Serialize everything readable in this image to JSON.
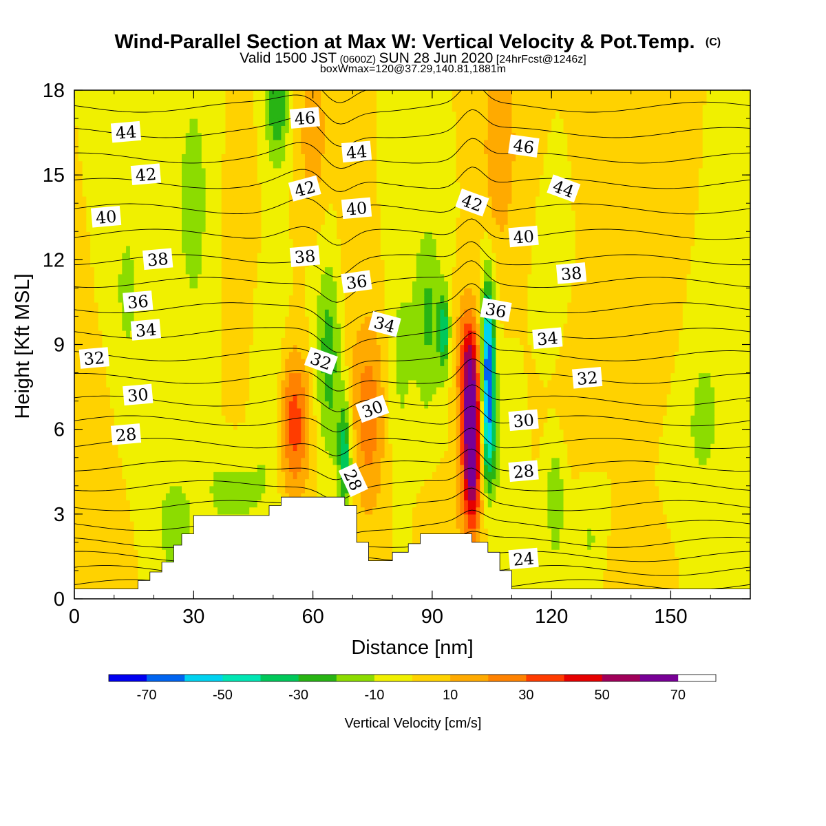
{
  "title": "Wind-Parallel Section at Max W: Vertical Velocity & Pot.Temp.",
  "title_mark": "(C)",
  "subtitle": {
    "a": "Valid 1500 JST",
    "b": "(0600Z)",
    "c": "SUN 28 Jun 2020",
    "d": "[24hrFcst@1246z]"
  },
  "subtitle2": "boxWmax=120@37.29,140.81,1881m",
  "chart_data": {
    "type": "heatmap",
    "xlabel": "Distance [nm]",
    "ylabel": "Height [Kft MSL]",
    "xlim": [
      0,
      170
    ],
    "ylim": [
      0,
      18
    ],
    "x_ticks": [
      "0",
      "30",
      "60",
      "90",
      "120",
      "150"
    ],
    "y_ticks": [
      "0",
      "3",
      "6",
      "9",
      "12",
      "15",
      "18"
    ],
    "field": {
      "background_w": 0,
      "anomalies": [
        {
          "x": 13,
          "y": 10.5,
          "sx": 4,
          "sy": 3.5,
          "w": -12
        },
        {
          "x": 30,
          "y": 14,
          "sx": 5,
          "sy": 5,
          "w": -12
        },
        {
          "x": 40,
          "y": 12,
          "sx": 3,
          "sy": 4,
          "w": 8
        },
        {
          "x": 50,
          "y": 7,
          "sx": 3,
          "sy": 2.5,
          "w": -14
        },
        {
          "x": 51,
          "y": 17.5,
          "sx": 2,
          "sy": 1.5,
          "w": -30
        },
        {
          "x": 55,
          "y": 6.2,
          "sx": 3,
          "sy": 1.8,
          "w": 38
        },
        {
          "x": 60,
          "y": 16.5,
          "sx": 2.5,
          "sy": 2,
          "w": 18
        },
        {
          "x": 64,
          "y": 8.5,
          "sx": 2.5,
          "sy": 2.5,
          "w": -26
        },
        {
          "x": 68,
          "y": 5,
          "sx": 1.2,
          "sy": 1.4,
          "w": -38
        },
        {
          "x": 68.5,
          "y": 12,
          "sx": 2,
          "sy": 4,
          "w": 6
        },
        {
          "x": 74,
          "y": 6.5,
          "sx": 3,
          "sy": 2.5,
          "w": 26
        },
        {
          "x": 82,
          "y": 8.5,
          "sx": 2.5,
          "sy": 3,
          "w": -12
        },
        {
          "x": 89,
          "y": 10,
          "sx": 2.5,
          "sy": 2.5,
          "w": -22
        },
        {
          "x": 93,
          "y": 9.5,
          "sx": 1,
          "sy": 1,
          "w": -34
        },
        {
          "x": 100,
          "y": 5.5,
          "sx": 1.8,
          "sy": 2,
          "w": 78
        },
        {
          "x": 99,
          "y": 8.5,
          "sx": 2,
          "sy": 1.5,
          "w": 35
        },
        {
          "x": 104,
          "y": 8.5,
          "sx": 1.2,
          "sy": 2,
          "w": -68
        },
        {
          "x": 104,
          "y": 5.5,
          "sx": 1.5,
          "sy": 1.5,
          "w": -35
        },
        {
          "x": 107,
          "y": 16,
          "sx": 3,
          "sy": 2.5,
          "w": 20
        },
        {
          "x": 109,
          "y": 4,
          "sx": 2,
          "sy": 2,
          "w": -10
        },
        {
          "x": 121,
          "y": 3.5,
          "sx": 1.5,
          "sy": 1.5,
          "w": -20
        },
        {
          "x": 120,
          "y": 10.5,
          "sx": 2,
          "sy": 1.5,
          "w": -10
        },
        {
          "x": 128,
          "y": 7.5,
          "sx": 5,
          "sy": 1.5,
          "w": 8
        },
        {
          "x": 145,
          "y": 10.5,
          "sx": 6,
          "sy": 2.5,
          "w": 9
        },
        {
          "x": 140,
          "y": 1.2,
          "sx": 6,
          "sy": 1.2,
          "w": 8
        },
        {
          "x": 158,
          "y": 6.5,
          "sx": 5,
          "sy": 3,
          "w": -12
        },
        {
          "x": 6,
          "y": 5.5,
          "sx": 5,
          "sy": 3.5,
          "w": 6
        },
        {
          "x": 40,
          "y": 3.8,
          "sx": 6,
          "sy": 1.2,
          "w": -14
        },
        {
          "x": 25,
          "y": 2.5,
          "sx": 3,
          "sy": 1.2,
          "w": -18
        },
        {
          "x": 95,
          "y": 3,
          "sx": 5,
          "sy": 1,
          "w": 8
        },
        {
          "x": 130,
          "y": 2,
          "sx": 3,
          "sy": 1.2,
          "w": -12
        }
      ]
    },
    "theta_contours": {
      "levels": [
        24,
        25,
        26,
        27,
        28,
        29,
        30,
        31,
        32,
        33,
        34,
        35,
        36,
        37,
        38,
        39,
        40,
        41,
        42,
        43,
        44,
        45,
        46,
        47
      ],
      "base_height": [
        0.5,
        1.0,
        1.5,
        2.0,
        2.6,
        3.3,
        4.0,
        4.7,
        5.5,
        6.3,
        7.0,
        7.8,
        8.6,
        9.4,
        10.3,
        11.2,
        12.0,
        12.9,
        13.8,
        14.7,
        15.6,
        16.5,
        17.4,
        18.2
      ],
      "labels": [
        {
          "text": "44",
          "x": 13,
          "y": 16.5,
          "angle": -5
        },
        {
          "text": "42",
          "x": 18,
          "y": 15.0,
          "angle": -5
        },
        {
          "text": "40",
          "x": 8,
          "y": 13.5,
          "angle": -5
        },
        {
          "text": "38",
          "x": 21,
          "y": 12.0,
          "angle": -5
        },
        {
          "text": "36",
          "x": 16,
          "y": 10.5,
          "angle": -5
        },
        {
          "text": "34",
          "x": 18,
          "y": 9.5,
          "angle": -5
        },
        {
          "text": "32",
          "x": 5,
          "y": 8.5,
          "angle": -5
        },
        {
          "text": "30",
          "x": 16,
          "y": 7.2,
          "angle": -5
        },
        {
          "text": "28",
          "x": 13,
          "y": 5.8,
          "angle": -5
        },
        {
          "text": "46",
          "x": 58,
          "y": 17.0,
          "angle": -5
        },
        {
          "text": "44",
          "x": 71,
          "y": 15.8,
          "angle": -5
        },
        {
          "text": "42",
          "x": 58,
          "y": 14.5,
          "angle": -15
        },
        {
          "text": "40",
          "x": 71,
          "y": 13.8,
          "angle": -5
        },
        {
          "text": "38",
          "x": 58,
          "y": 12.1,
          "angle": -5
        },
        {
          "text": "36",
          "x": 71,
          "y": 11.2,
          "angle": -8
        },
        {
          "text": "34",
          "x": 78,
          "y": 9.7,
          "angle": 15
        },
        {
          "text": "32",
          "x": 62,
          "y": 8.4,
          "angle": 20
        },
        {
          "text": "30",
          "x": 75,
          "y": 6.7,
          "angle": -20
        },
        {
          "text": "28",
          "x": 70,
          "y": 4.2,
          "angle": 65
        },
        {
          "text": "46",
          "x": 113,
          "y": 16.0,
          "angle": 8
        },
        {
          "text": "44",
          "x": 123,
          "y": 14.5,
          "angle": 20
        },
        {
          "text": "42",
          "x": 100,
          "y": 14.0,
          "angle": 20
        },
        {
          "text": "40",
          "x": 113,
          "y": 12.8,
          "angle": -5
        },
        {
          "text": "38",
          "x": 125,
          "y": 11.5,
          "angle": -5
        },
        {
          "text": "36",
          "x": 106,
          "y": 10.2,
          "angle": 10
        },
        {
          "text": "34",
          "x": 119,
          "y": 9.2,
          "angle": -5
        },
        {
          "text": "32",
          "x": 129,
          "y": 7.8,
          "angle": -5
        },
        {
          "text": "30",
          "x": 113,
          "y": 6.3,
          "angle": -5
        },
        {
          "text": "28",
          "x": 113,
          "y": 4.5,
          "angle": -5
        },
        {
          "text": "24",
          "x": 113,
          "y": 1.4,
          "angle": -5
        }
      ]
    },
    "terrain_kft": [
      [
        0,
        0.35
      ],
      [
        16,
        0.35
      ],
      [
        16,
        0.65
      ],
      [
        19,
        0.65
      ],
      [
        19,
        0.95
      ],
      [
        22,
        0.95
      ],
      [
        22,
        1.3
      ],
      [
        25,
        1.3
      ],
      [
        25,
        1.9
      ],
      [
        27,
        1.9
      ],
      [
        27,
        2.3
      ],
      [
        30,
        2.3
      ],
      [
        30,
        2.95
      ],
      [
        49,
        2.95
      ],
      [
        49,
        3.3
      ],
      [
        52,
        3.3
      ],
      [
        52,
        3.6
      ],
      [
        68,
        3.6
      ],
      [
        68,
        3.3
      ],
      [
        71,
        3.3
      ],
      [
        71,
        2.0
      ],
      [
        74,
        2.0
      ],
      [
        74,
        1.35
      ],
      [
        80,
        1.35
      ],
      [
        80,
        1.65
      ],
      [
        84,
        1.65
      ],
      [
        84,
        1.95
      ],
      [
        87,
        1.95
      ],
      [
        87,
        2.3
      ],
      [
        100,
        2.3
      ],
      [
        100,
        2.0
      ],
      [
        104,
        2.0
      ],
      [
        104,
        1.65
      ],
      [
        107,
        1.65
      ],
      [
        107,
        1.0
      ],
      [
        110,
        1.0
      ],
      [
        110,
        0.35
      ],
      [
        170,
        0.35
      ]
    ],
    "colorbar": {
      "title": "Vertical Velocity [cm/s]",
      "bounds": [
        -80,
        -70,
        -60,
        -50,
        -40,
        -30,
        -20,
        -10,
        0,
        10,
        20,
        30,
        40,
        50,
        60,
        70,
        80
      ],
      "colors": [
        "#0000f0",
        "#0064f0",
        "#00d2f0",
        "#00e6b4",
        "#00c85a",
        "#28b414",
        "#8cdc00",
        "#f0f000",
        "#ffd200",
        "#ffaa00",
        "#ff8200",
        "#ff3c00",
        "#e60000",
        "#a0005a",
        "#780096"
      ],
      "tick_labels": [
        "-70",
        "-50",
        "-30",
        "-10",
        "10",
        "30",
        "50",
        "70"
      ]
    }
  }
}
